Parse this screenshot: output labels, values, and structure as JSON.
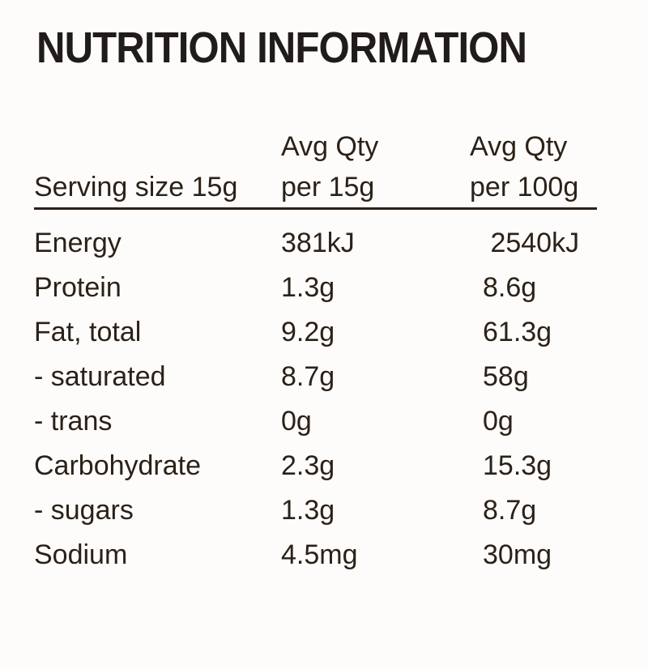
{
  "page": {
    "background_color": "#fdfcfa",
    "text_color": "#2b2118",
    "title_color": "#211c19"
  },
  "title": "NUTRITION INFORMATION",
  "table": {
    "header": {
      "serving_size": "Serving size 15g",
      "col_per15": {
        "line1": "Avg Qty",
        "line2": "per 15g"
      },
      "col_per100": {
        "line1": "Avg Qty",
        "line2": "per 100g"
      }
    },
    "rows": [
      {
        "label": "Energy",
        "per15": "381kJ",
        "per100": " 2540kJ"
      },
      {
        "label": "Protein",
        "per15": "1.3g",
        "per100": "8.6g"
      },
      {
        "label": "Fat, total",
        "per15": "9.2g",
        "per100": "61.3g"
      },
      {
        "label": "- saturated",
        "per15": "8.7g",
        "per100": "58g"
      },
      {
        "label": "- trans",
        "per15": "0g",
        "per100": "0g"
      },
      {
        "label": "Carbohydrate",
        "per15": "2.3g",
        "per100": "15.3g"
      },
      {
        "label": "- sugars",
        "per15": "1.3g",
        "per100": "8.7g"
      },
      {
        "label": "Sodium",
        "per15": "4.5mg",
        "per100": "30mg"
      }
    ]
  }
}
